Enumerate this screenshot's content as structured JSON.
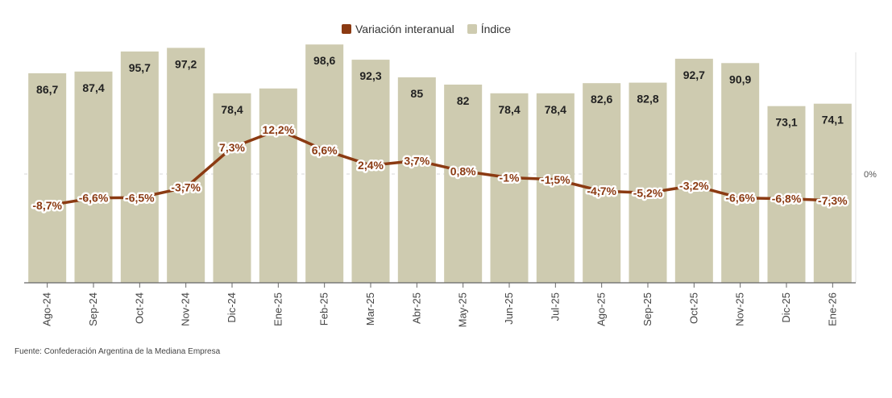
{
  "legend": {
    "line_label": "Variación interanual",
    "bar_label": "Índice"
  },
  "source": "Fuente: Confederación Argentina de la Mediana Empresa",
  "colors": {
    "bar": "#cecbb0",
    "line": "#8b3a12",
    "label_text": "#222222",
    "axis": "#666666"
  },
  "chart_data": {
    "type": "bar",
    "categories": [
      "Ago-24",
      "Sep-24",
      "Oct-24",
      "Nov-24",
      "Dic-24",
      "Ene-25",
      "Feb-25",
      "Mar-25",
      "Abr-25",
      "May-25",
      "Jun-25",
      "Jul-25",
      "Ago-25",
      "Sep-25",
      "Oct-25",
      "Nov-25",
      "Dic-25",
      "Ene-26"
    ],
    "series": [
      {
        "name": "Índice",
        "type": "bar",
        "values": [
          86.7,
          87.4,
          95.7,
          97.2,
          78.4,
          80.4,
          98.6,
          92.3,
          85,
          82,
          78.4,
          78.4,
          82.6,
          82.8,
          92.7,
          90.9,
          73.1,
          74.1
        ],
        "labels": [
          "86,7",
          "87,4",
          "95,7",
          "97,2",
          "78,4",
          "",
          "98,6",
          "92,3",
          "85",
          "82",
          "78,4",
          "78,4",
          "82,6",
          "82,8",
          "92,7",
          "90,9",
          "73,1",
          "74,1"
        ]
      },
      {
        "name": "Variación interanual",
        "type": "line",
        "values": [
          -8.7,
          -6.6,
          -6.5,
          -3.7,
          7.3,
          12.2,
          6.6,
          2.4,
          3.7,
          0.8,
          -1,
          -1.5,
          -4.7,
          -5.2,
          -3.2,
          -6.6,
          -6.8,
          -7.3
        ],
        "labels": [
          "-8,7%",
          "-6,6%",
          "-6,5%",
          "-3,7%",
          "7,3%",
          "12,2%",
          "6,6%",
          "2,4%",
          "3,7%",
          "0,8%",
          "-1%",
          "-1,5%",
          "-4,7%",
          "-5,2%",
          "-3,2%",
          "-6,6%",
          "-6,8%",
          "-7,3%"
        ]
      }
    ],
    "right_axis_label": "0%",
    "ylim_bars": [
      0,
      100
    ],
    "ylim_line": [
      -25,
      25
    ]
  }
}
